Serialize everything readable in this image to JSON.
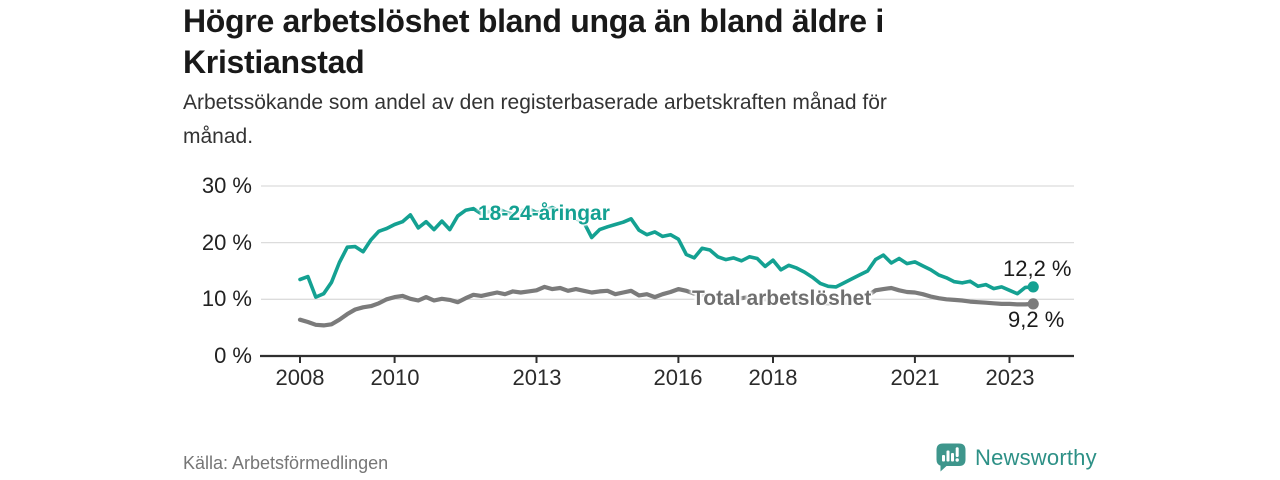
{
  "header": {
    "title": "Högre arbetslöshet bland unga än bland äldre i Kristianstad",
    "subtitle": "Arbetssökande som andel av den registerbaserade arbetskraften månad för månad."
  },
  "footer": {
    "source": "Källa: Arbetsförmedlingen",
    "brand": "Newsworthy"
  },
  "colors": {
    "young_series": "#14a192",
    "total_series": "#7b7b7b",
    "gridline": "#dcdcdc",
    "axis": "#2f2f2f",
    "brand_teal": "#3e968c",
    "brand_text": "#2d9086",
    "value_label": "#1a1a1a"
  },
  "chart_data": {
    "type": "line",
    "title": "Högre arbetslöshet bland unga än bland äldre i Kristianstad",
    "subtitle": "Arbetssökande som andel av den registerbaserade arbetskraften månad för månad.",
    "unit": "%",
    "grid": "horizontal",
    "legend_position": "inline-labels",
    "xlim": [
      2007.2,
      2024.35
    ],
    "ylim": [
      0,
      32
    ],
    "x_start": 2008.0,
    "x_step_years": 0.1666667,
    "x_ticks": [
      {
        "value": 2008,
        "label": "2008"
      },
      {
        "value": 2010,
        "label": "2010"
      },
      {
        "value": 2013,
        "label": "2013"
      },
      {
        "value": 2016,
        "label": "2016"
      },
      {
        "value": 2018,
        "label": "2018"
      },
      {
        "value": 2021,
        "label": "2021"
      },
      {
        "value": 2023,
        "label": "2023"
      }
    ],
    "y_ticks": [
      {
        "value": 0,
        "label": "0 %"
      },
      {
        "value": 10,
        "label": "10 %"
      },
      {
        "value": 20,
        "label": "20 %"
      },
      {
        "value": 30,
        "label": "30 %"
      }
    ],
    "series": [
      {
        "name": "18-24-åringar",
        "color": "#14a192",
        "line_width": 3.6,
        "last_value": 12.2,
        "end_value_label": "12,2 %",
        "values": [
          13.5,
          14.0,
          10.4,
          11.0,
          13.0,
          16.5,
          19.2,
          19.3,
          18.4,
          20.5,
          22.0,
          22.5,
          23.2,
          23.7,
          24.9,
          22.6,
          23.7,
          22.3,
          23.8,
          22.3,
          24.7,
          25.7,
          26.0,
          25.1,
          25.5,
          26.1,
          25.4,
          25.0,
          25.6,
          26.0,
          25.3,
          25.7,
          26.2,
          25.4,
          24.8,
          24.2,
          23.6,
          20.9,
          22.3,
          22.8,
          23.2,
          23.6,
          24.2,
          22.2,
          21.4,
          21.9,
          21.1,
          21.4,
          20.6,
          17.9,
          17.3,
          19.0,
          18.7,
          17.5,
          17.0,
          17.3,
          16.8,
          17.5,
          17.2,
          15.8,
          16.9,
          15.2,
          16.0,
          15.5,
          14.8,
          13.9,
          12.8,
          12.3,
          12.2,
          12.9,
          13.6,
          14.3,
          15.0,
          17.0,
          17.8,
          16.4,
          17.2,
          16.3,
          16.6,
          15.9,
          15.2,
          14.3,
          13.8,
          13.1,
          12.9,
          13.2,
          12.3,
          12.6,
          11.9,
          12.2,
          11.6,
          11.0,
          12.1,
          12.2
        ]
      },
      {
        "name": "Total arbetslöshet",
        "color": "#7b7b7b",
        "line_width": 4.2,
        "last_value": 9.2,
        "end_value_label": "9,2 %",
        "values": [
          6.4,
          6.0,
          5.5,
          5.4,
          5.6,
          6.4,
          7.4,
          8.2,
          8.6,
          8.8,
          9.3,
          10.0,
          10.4,
          10.6,
          10.1,
          9.8,
          10.4,
          9.8,
          10.1,
          9.9,
          9.5,
          10.2,
          10.8,
          10.6,
          10.9,
          11.2,
          10.9,
          11.4,
          11.2,
          11.4,
          11.6,
          12.2,
          11.8,
          12.0,
          11.5,
          11.8,
          11.5,
          11.2,
          11.4,
          11.5,
          10.9,
          11.2,
          11.5,
          10.7,
          10.9,
          10.4,
          10.9,
          11.3,
          11.8,
          11.5,
          11.0,
          10.8,
          10.6,
          10.4,
          10.6,
          10.3,
          10.2,
          10.4,
          10.1,
          10.0,
          9.9,
          9.7,
          9.8,
          9.6,
          9.7,
          9.5,
          9.4,
          9.3,
          9.5,
          9.4,
          9.6,
          9.9,
          10.6,
          11.6,
          11.8,
          12.0,
          11.6,
          11.3,
          11.2,
          10.9,
          10.5,
          10.2,
          10.0,
          9.9,
          9.8,
          9.6,
          9.5,
          9.4,
          9.3,
          9.2,
          9.2,
          9.1,
          9.1,
          9.2
        ]
      }
    ]
  }
}
